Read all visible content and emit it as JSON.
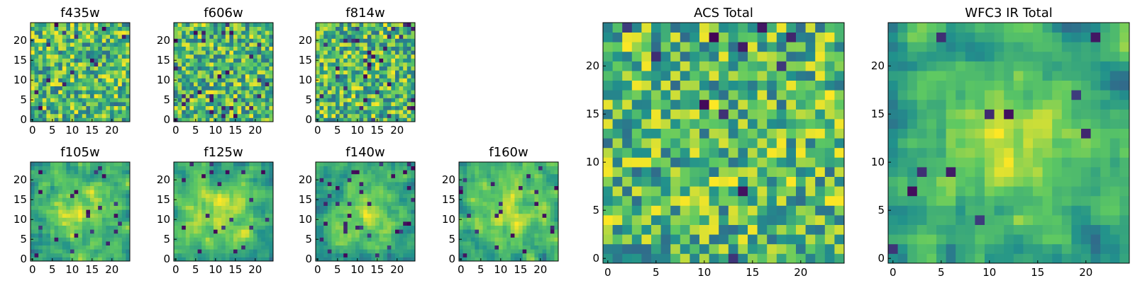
{
  "chart_data": [
    {
      "id": "f435w",
      "type": "heatmap",
      "title": "f435w",
      "grid_size": 25,
      "seed": 11,
      "pattern": "noise",
      "smooth": 0,
      "holes": 0.03,
      "xticks": [
        "0",
        "5",
        "10",
        "15",
        "20"
      ],
      "yticks": [
        "0",
        "5",
        "10",
        "15",
        "20"
      ],
      "xlim": [
        0,
        25
      ],
      "ylim": [
        0,
        25
      ]
    },
    {
      "id": "f606w",
      "type": "heatmap",
      "title": "f606w",
      "grid_size": 25,
      "seed": 23,
      "pattern": "noise",
      "smooth": 0,
      "holes": 0.04,
      "xticks": [
        "0",
        "5",
        "10",
        "15",
        "20"
      ],
      "yticks": [
        "0",
        "5",
        "10",
        "15",
        "20"
      ],
      "xlim": [
        0,
        25
      ],
      "ylim": [
        0,
        25
      ]
    },
    {
      "id": "f814w",
      "type": "heatmap",
      "title": "f814w",
      "grid_size": 25,
      "seed": 37,
      "pattern": "noise",
      "smooth": 0,
      "holes": 0.05,
      "xticks": [
        "0",
        "5",
        "10",
        "15",
        "20"
      ],
      "yticks": [
        "0",
        "5",
        "10",
        "15",
        "20"
      ],
      "xlim": [
        0,
        25
      ],
      "ylim": [
        0,
        25
      ]
    },
    {
      "id": "f105w",
      "type": "heatmap",
      "title": "f105w",
      "grid_size": 25,
      "seed": 41,
      "pattern": "blob",
      "smooth": 1,
      "holes": 0.04,
      "xticks": [
        "0",
        "5",
        "10",
        "15",
        "20"
      ],
      "yticks": [
        "0",
        "5",
        "10",
        "15",
        "20"
      ],
      "xlim": [
        0,
        25
      ],
      "ylim": [
        0,
        25
      ]
    },
    {
      "id": "f125w",
      "type": "heatmap",
      "title": "f125w",
      "grid_size": 25,
      "seed": 53,
      "pattern": "blob",
      "smooth": 1,
      "holes": 0.04,
      "xticks": [
        "0",
        "5",
        "10",
        "15",
        "20"
      ],
      "yticks": [
        "0",
        "5",
        "10",
        "15",
        "20"
      ],
      "xlim": [
        0,
        25
      ],
      "ylim": [
        0,
        25
      ]
    },
    {
      "id": "f140w",
      "type": "heatmap",
      "title": "f140w",
      "grid_size": 25,
      "seed": 67,
      "pattern": "blob",
      "smooth": 1,
      "holes": 0.04,
      "xticks": [
        "0",
        "5",
        "10",
        "15",
        "20"
      ],
      "yticks": [
        "0",
        "5",
        "10",
        "15",
        "20"
      ],
      "xlim": [
        0,
        25
      ],
      "ylim": [
        0,
        25
      ]
    },
    {
      "id": "f160w",
      "type": "heatmap",
      "title": "f160w",
      "grid_size": 25,
      "seed": 79,
      "pattern": "blob",
      "smooth": 1,
      "holes": 0.05,
      "xticks": [
        "0",
        "5",
        "10",
        "15",
        "20"
      ],
      "yticks": [
        "0",
        "5",
        "10",
        "15",
        "20"
      ],
      "xlim": [
        0,
        25
      ],
      "ylim": [
        0,
        25
      ]
    },
    {
      "id": "acs_total",
      "type": "heatmap",
      "title": "ACS Total",
      "grid_size": 25,
      "seed": 97,
      "pattern": "noise",
      "smooth": 0,
      "holes": 0.025,
      "xticks": [
        "0",
        "5",
        "10",
        "15",
        "20"
      ],
      "yticks": [
        "0",
        "5",
        "10",
        "15",
        "20"
      ],
      "xlim": [
        0,
        25
      ],
      "ylim": [
        0,
        25
      ]
    },
    {
      "id": "wfc3_ir_total",
      "type": "heatmap",
      "title": "WFC3 IR Total",
      "grid_size": 25,
      "seed": 113,
      "pattern": "blob",
      "smooth": 1,
      "holes": 0.02,
      "xticks": [
        "0",
        "5",
        "10",
        "15",
        "20"
      ],
      "yticks": [
        "0",
        "5",
        "10",
        "15",
        "20"
      ],
      "xlim": [
        0,
        25
      ],
      "ylim": [
        0,
        25
      ]
    }
  ],
  "colormap": {
    "name": "viridis",
    "stops": [
      "#440154",
      "#3b528b",
      "#21918c",
      "#5ec962",
      "#fde725"
    ]
  }
}
